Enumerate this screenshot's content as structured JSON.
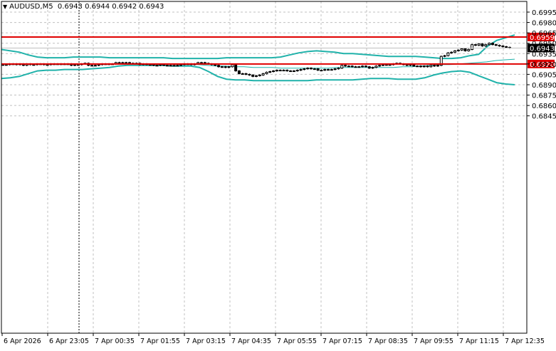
{
  "header": {
    "symbol": "AUDUSD,M5",
    "ohlc": "0.6943 0.6944 0.6942 0.6943"
  },
  "colors": {
    "candle": "#000000",
    "bands": "#20b2aa",
    "level": "#e00000",
    "grid": "#c0c0c0",
    "price_tag": "#000000"
  },
  "chart_data": {
    "type": "candlestick",
    "ylim": [
      0.6838,
      0.7003
    ],
    "y_ticks": [
      "0.6995",
      "0.6980",
      "0.6965",
      "0.6950",
      "0.6935",
      "0.6920",
      "0.6905",
      "0.6890",
      "0.6875",
      "0.6860",
      "0.6845"
    ],
    "x_ticks": [
      "6 Apr 2026",
      "6 Apr 23:05",
      "7 Apr 00:35",
      "7 Apr 01:55",
      "7 Apr 03:15",
      "7 Apr 04:35",
      "7 Apr 05:55",
      "7 Apr 07:15",
      "7 Apr 08:35",
      "7 Apr 09:55",
      "7 Apr 11:15",
      "7 Apr 12:35"
    ],
    "levels": [
      {
        "value": 0.6959,
        "label": "0.6959"
      },
      {
        "value": 0.692,
        "label": "0.6920"
      }
    ],
    "current_price": {
      "value": 0.6943,
      "label": "0.6943"
    },
    "close": [
      0.6919,
      0.6919,
      0.692,
      0.692,
      0.6919,
      0.692,
      0.6918,
      0.692,
      0.6919,
      0.6919,
      0.692,
      0.692,
      0.6919,
      0.6919,
      0.692,
      0.692,
      0.692,
      0.692,
      0.692,
      0.692,
      0.6918,
      0.6919,
      0.6919,
      0.692,
      0.6921,
      0.6918,
      0.6918,
      0.6918,
      0.6919,
      0.692,
      0.692,
      0.692,
      0.692,
      0.6922,
      0.6922,
      0.6921,
      0.6922,
      0.6921,
      0.6921,
      0.6921,
      0.6919,
      0.692,
      0.6919,
      0.6919,
      0.6918,
      0.6918,
      0.6919,
      0.6918,
      0.6918,
      0.6918,
      0.6918,
      0.6918,
      0.6919,
      0.692,
      0.692,
      0.6919,
      0.692,
      0.6922,
      0.6922,
      0.6921,
      0.692,
      0.6919,
      0.6918,
      0.6916,
      0.6916,
      0.6915,
      0.6916,
      0.6919,
      0.691,
      0.6906,
      0.6906,
      0.6905,
      0.6904,
      0.6902,
      0.6903,
      0.6904,
      0.6906,
      0.6908,
      0.6909,
      0.691,
      0.6911,
      0.6911,
      0.6911,
      0.691,
      0.691,
      0.691,
      0.6911,
      0.6912,
      0.6913,
      0.6914,
      0.6913,
      0.6913,
      0.6911,
      0.6911,
      0.6912,
      0.6912,
      0.6912,
      0.6913,
      0.6914,
      0.6918,
      0.6917,
      0.6917,
      0.6916,
      0.6916,
      0.6916,
      0.6917,
      0.6916,
      0.6914,
      0.6915,
      0.6917,
      0.6918,
      0.6919,
      0.6919,
      0.6919,
      0.692,
      0.6921,
      0.692,
      0.6919,
      0.6918,
      0.6919,
      0.6917,
      0.6917,
      0.6916,
      0.6917,
      0.6916,
      0.6918,
      0.6917,
      0.6918,
      0.6931,
      0.6932,
      0.6936,
      0.6937,
      0.6939,
      0.694,
      0.6942,
      0.6939,
      0.6941,
      0.6948,
      0.6947,
      0.6949,
      0.6946,
      0.6948,
      0.695,
      0.6948,
      0.6947,
      0.6946,
      0.6945,
      0.6944,
      0.6943
    ],
    "bb_upper": [
      0.6941,
      0.6939,
      0.6937,
      0.6933,
      0.693,
      0.6929,
      0.6929,
      0.6929,
      0.693,
      0.693,
      0.693,
      0.693,
      0.6929,
      0.6929,
      0.6929,
      0.6929,
      0.6929,
      0.6929,
      0.6929,
      0.6928,
      0.6928,
      0.6928,
      0.6928,
      0.6928,
      0.6928,
      0.6929,
      0.6929,
      0.6929,
      0.6929,
      0.6929,
      0.6929,
      0.693,
      0.6933,
      0.6936,
      0.6938,
      0.6939,
      0.6938,
      0.6937,
      0.6935,
      0.6935,
      0.6934,
      0.6933,
      0.6932,
      0.6931,
      0.6931,
      0.6931,
      0.6931,
      0.693,
      0.6929,
      0.6928,
      0.6928,
      0.6929,
      0.6932,
      0.6934,
      0.6946,
      0.6954,
      0.6958,
      0.6962
    ],
    "bb_middle": [
      0.692,
      0.692,
      0.692,
      0.692,
      0.692,
      0.692,
      0.692,
      0.692,
      0.692,
      0.692,
      0.692,
      0.692,
      0.692,
      0.692,
      0.692,
      0.692,
      0.692,
      0.692,
      0.692,
      0.6919,
      0.6919,
      0.6919,
      0.6918,
      0.6917,
      0.6917,
      0.6916,
      0.6916,
      0.6915,
      0.6915,
      0.6915,
      0.6914,
      0.6914,
      0.6914,
      0.6914,
      0.6914,
      0.6914,
      0.6915,
      0.6915,
      0.6915,
      0.6915,
      0.6915,
      0.6915,
      0.6915,
      0.6916,
      0.6916,
      0.6917,
      0.6918,
      0.6919,
      0.6919,
      0.692,
      0.6921,
      0.6922,
      0.6923,
      0.6925,
      0.6926,
      0.6927
    ],
    "bb_lower": [
      0.6899,
      0.69,
      0.6902,
      0.6906,
      0.691,
      0.6911,
      0.6911,
      0.6912,
      0.6912,
      0.6912,
      0.6913,
      0.6914,
      0.6915,
      0.6917,
      0.6918,
      0.6918,
      0.6918,
      0.6918,
      0.6918,
      0.6917,
      0.6917,
      0.6917,
      0.6915,
      0.6909,
      0.6902,
      0.6898,
      0.6897,
      0.6897,
      0.6896,
      0.6896,
      0.6896,
      0.6896,
      0.6896,
      0.6896,
      0.6896,
      0.6897,
      0.6897,
      0.6897,
      0.6897,
      0.6897,
      0.6898,
      0.6899,
      0.6899,
      0.6899,
      0.6898,
      0.6898,
      0.6898,
      0.69,
      0.6904,
      0.6907,
      0.6909,
      0.691,
      0.6908,
      0.6903,
      0.6898,
      0.6893,
      0.6891,
      0.689
    ]
  }
}
